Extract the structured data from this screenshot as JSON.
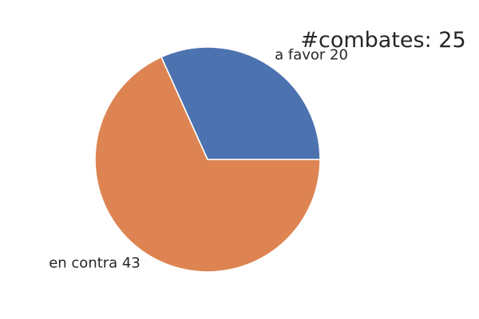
{
  "chart_data": {
    "type": "pie",
    "title": "#combates: 25",
    "slices": [
      {
        "label": "a favor",
        "value": 20,
        "display": "a favor 20",
        "color": "#4c72b0"
      },
      {
        "label": "en contra",
        "value": 43,
        "display": "en contra 43",
        "color": "#dd8452"
      }
    ],
    "start_angle_deg": 0,
    "direction": "counterclockwise",
    "legend": "none"
  }
}
